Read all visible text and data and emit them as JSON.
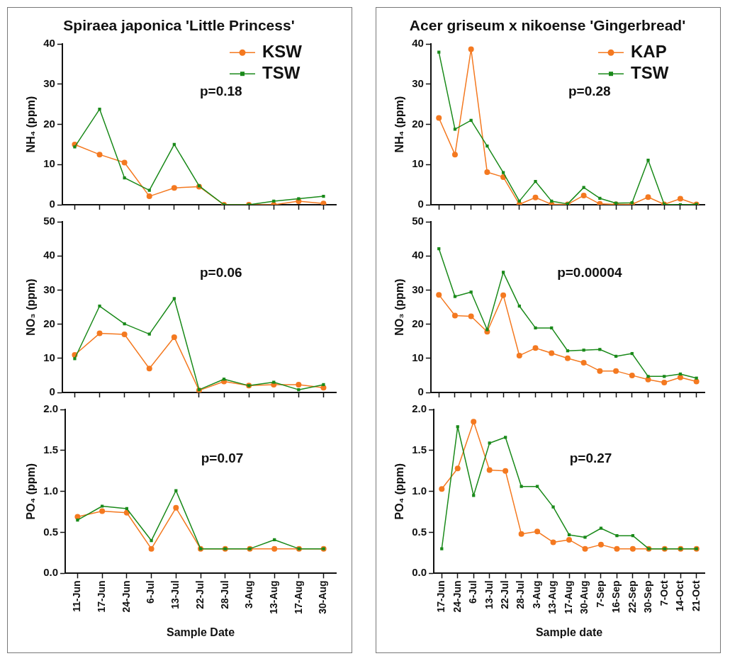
{
  "chart_data": [
    {
      "type": "line",
      "title": "Spiraea japonica 'Little Princess'",
      "ylabel": "NH₄ (ppm)",
      "categories": [
        null,
        null,
        null,
        null,
        null,
        null,
        null,
        null,
        null,
        null,
        null
      ],
      "ylim": [
        0,
        40
      ],
      "yticks": [
        0,
        10,
        20,
        30,
        40
      ],
      "tick_labels": "y",
      "legend": "top right",
      "grid": false,
      "annotations": [
        "p=0.18"
      ],
      "series": [
        {
          "name": "KSW",
          "color": "#f47920",
          "marker": "circle",
          "values": [
            15.0,
            12.5,
            10.5,
            2.1,
            4.2,
            4.5,
            0,
            0,
            0,
            0.9,
            0.3
          ]
        },
        {
          "name": "TSW",
          "color": "#1a8a1a",
          "marker": "square",
          "values": [
            14.4,
            23.8,
            6.7,
            3.6,
            15.0,
            4.7,
            0,
            0,
            0.9,
            1.5,
            2.1
          ]
        }
      ]
    },
    {
      "type": "line",
      "ylabel": "NO₃ (ppm)",
      "categories": [
        null,
        null,
        null,
        null,
        null,
        null,
        null,
        null,
        null,
        null,
        null
      ],
      "ylim": [
        0,
        50
      ],
      "yticks": [
        0,
        10,
        20,
        30,
        40,
        50
      ],
      "tick_labels": "y",
      "grid": false,
      "annotations": [
        "p=0.06"
      ],
      "series": [
        {
          "color": "#f47920",
          "marker": "circle",
          "values": [
            11.0,
            17.3,
            17.0,
            7.0,
            16.2,
            0.6,
            3.2,
            2.0,
            2.3,
            2.3,
            1.4
          ]
        },
        {
          "color": "#1a8a1a",
          "marker": "square",
          "values": [
            9.9,
            25.3,
            20.1,
            17.1,
            27.5,
            0.8,
            3.9,
            2.0,
            3.0,
            0.8,
            2.3
          ]
        }
      ]
    },
    {
      "type": "line",
      "ylabel": "PO₄ (ppm)",
      "xlabel": "Sample Date",
      "categories": [
        "11-Jun",
        "17-Jun",
        "24-Jun",
        "6-Jul",
        "13-Jul",
        "22-Jul",
        "28-Jul",
        "3-Aug",
        "13-Aug",
        "17-Aug",
        "30-Aug"
      ],
      "ylim": [
        0,
        2
      ],
      "yticks": [
        {
          "value": 0,
          "label": "0.0"
        },
        {
          "value": 0.5,
          "label": "0.5"
        },
        {
          "value": 1,
          "label": "1.0"
        },
        {
          "value": 1.5,
          "label": "1.5"
        },
        {
          "value": 2,
          "label": "2.0"
        }
      ],
      "grid": false,
      "annotations": [
        "p=0.07"
      ],
      "series": [
        {
          "color": "#f47920",
          "marker": "circle",
          "values": [
            0.69,
            0.76,
            0.74,
            0.3,
            0.8,
            0.3,
            0.3,
            0.3,
            0.3,
            0.3,
            0.3
          ]
        },
        {
          "color": "#1a8a1a",
          "marker": "square",
          "values": [
            0.65,
            0.82,
            0.79,
            0.4,
            1.01,
            0.3,
            0.3,
            0.3,
            0.41,
            0.3,
            0.3
          ]
        }
      ]
    },
    {
      "type": "line",
      "title": "Acer griseum x nikoense 'Gingerbread'",
      "ylabel": "NH₄ (ppm)",
      "categories": [
        null,
        null,
        null,
        null,
        null,
        null,
        null,
        null,
        null,
        null,
        null,
        null,
        null,
        null,
        null,
        null,
        null
      ],
      "ylim": [
        0,
        40
      ],
      "yticks": [
        0,
        10,
        20,
        30,
        40
      ],
      "tick_labels": "y",
      "legend": "top right",
      "grid": false,
      "annotations": [
        "p=0.28"
      ],
      "series": [
        {
          "name": "KAP",
          "color": "#f47920",
          "marker": "circle",
          "values": [
            21.6,
            12.5,
            38.7,
            8.1,
            6.9,
            0.1,
            1.8,
            0.1,
            0.1,
            2.3,
            0.2,
            0.1,
            0.1,
            1.9,
            0.1,
            1.5,
            0.1
          ]
        },
        {
          "name": "TSW",
          "color": "#1a8a1a",
          "marker": "square",
          "values": [
            38.0,
            18.8,
            21.0,
            14.6,
            8.0,
            0.9,
            5.8,
            0.9,
            0.2,
            4.3,
            1.6,
            0.4,
            0.5,
            11.1,
            0.1,
            0,
            0.1
          ]
        }
      ]
    },
    {
      "type": "line",
      "ylabel": "NO₃ (ppm)",
      "categories": [
        null,
        null,
        null,
        null,
        null,
        null,
        null,
        null,
        null,
        null,
        null,
        null,
        null,
        null,
        null,
        null,
        null
      ],
      "ylim": [
        0,
        50
      ],
      "yticks": [
        0,
        10,
        20,
        30,
        40,
        50
      ],
      "tick_labels": "y",
      "grid": false,
      "annotations": [
        "p=0.00004"
      ],
      "series": [
        {
          "color": "#f47920",
          "marker": "circle",
          "values": [
            28.6,
            22.5,
            22.3,
            17.8,
            28.5,
            10.8,
            13.0,
            11.5,
            10.0,
            8.7,
            6.3,
            6.3,
            5.0,
            3.8,
            2.9,
            4.4,
            3.2
          ]
        },
        {
          "color": "#1a8a1a",
          "marker": "square",
          "values": [
            42.1,
            28.1,
            29.4,
            18.4,
            35.2,
            25.3,
            18.9,
            18.9,
            12.2,
            12.4,
            12.6,
            10.6,
            11.4,
            4.7,
            4.7,
            5.4,
            4.2
          ]
        }
      ]
    },
    {
      "type": "line",
      "ylabel": "PO₄ (ppm)",
      "xlabel": "Sample date",
      "categories": [
        "17-Jun",
        "24-Jun",
        "6-Jul",
        "13-Jul",
        "22-Jul",
        "28-Jul",
        "3-Aug",
        "13-Aug",
        "17-Aug",
        "30-Aug",
        "7-Sep",
        "16-Sep",
        "22-Sep",
        "30-Sep",
        "7-Oct",
        "14-Oct",
        "21-Oct"
      ],
      "ylim": [
        0,
        2
      ],
      "yticks": [
        {
          "value": 0,
          "label": "0.0"
        },
        {
          "value": 0.5,
          "label": "0.5"
        },
        {
          "value": 1,
          "label": "1.0"
        },
        {
          "value": 1.5,
          "label": "1.5"
        },
        {
          "value": 2,
          "label": "2.0"
        }
      ],
      "grid": false,
      "annotations": [
        "p=0.27"
      ],
      "series": [
        {
          "color": "#f47920",
          "marker": "circle",
          "values": [
            1.03,
            1.28,
            1.85,
            1.26,
            1.25,
            0.48,
            0.51,
            0.38,
            0.41,
            0.3,
            0.35,
            0.3,
            0.3,
            0.3,
            0.3,
            0.3,
            0.3
          ]
        },
        {
          "color": "#1a8a1a",
          "marker": "square",
          "values": [
            0.3,
            1.79,
            0.95,
            1.59,
            1.66,
            1.06,
            1.06,
            0.81,
            0.47,
            0.44,
            0.55,
            0.46,
            0.46,
            0.3,
            0.3,
            0.3,
            0.3
          ]
        }
      ]
    }
  ]
}
